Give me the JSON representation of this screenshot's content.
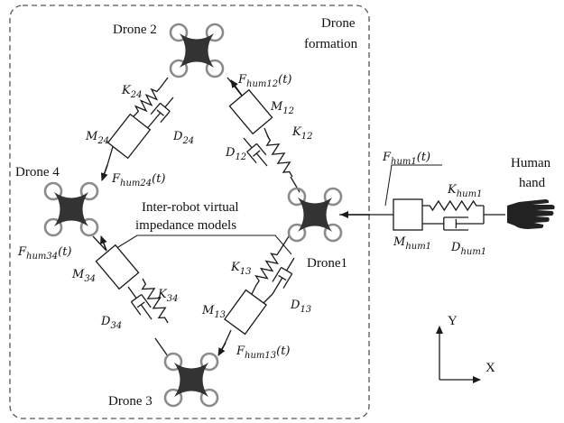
{
  "labels": {
    "drone_formation_1": "Drone",
    "drone_formation_2": "formation",
    "drone1": "Drone1",
    "drone2": "Drone 2",
    "drone3": "Drone 3",
    "drone4": "Drone 4",
    "human_1": "Human",
    "human_2": "hand",
    "inter_1": "Inter-robot  virtual",
    "inter_2": "impedance models",
    "axis_x": "X",
    "axis_y": "Y"
  },
  "symbols": {
    "F_hum12": {
      "base": "F",
      "sub": "hum12",
      "tail": "(t)"
    },
    "F_hum24": {
      "base": "F",
      "sub": "hum24",
      "tail": "(t)"
    },
    "F_hum34": {
      "base": "F",
      "sub": "hum34",
      "tail": "(t)"
    },
    "F_hum13": {
      "base": "F",
      "sub": "hum13",
      "tail": "(t)"
    },
    "F_hum1": {
      "base": "F",
      "sub": "hum1",
      "tail": "(t)"
    },
    "K_24": {
      "base": "K",
      "sub": "24",
      "tail": ""
    },
    "M_24": {
      "base": "M",
      "sub": "24",
      "tail": ""
    },
    "D_24": {
      "base": "D",
      "sub": "24",
      "tail": ""
    },
    "M_12": {
      "base": "M",
      "sub": "12",
      "tail": ""
    },
    "K_12": {
      "base": "K",
      "sub": "12",
      "tail": ""
    },
    "D_12": {
      "base": "D",
      "sub": "12",
      "tail": ""
    },
    "M_34": {
      "base": "M",
      "sub": "34",
      "tail": ""
    },
    "K_34": {
      "base": "K",
      "sub": "34",
      "tail": ""
    },
    "D_34": {
      "base": "D",
      "sub": "34",
      "tail": ""
    },
    "K_13": {
      "base": "K",
      "sub": "13",
      "tail": ""
    },
    "M_13": {
      "base": "M",
      "sub": "13",
      "tail": ""
    },
    "D_13": {
      "base": "D",
      "sub": "13",
      "tail": ""
    },
    "K_hum1": {
      "base": "K",
      "sub": "hum1",
      "tail": ""
    },
    "M_hum1": {
      "base": "M",
      "sub": "hum1",
      "tail": ""
    },
    "D_hum1": {
      "base": "D",
      "sub": "hum1",
      "tail": ""
    }
  },
  "colors": {
    "ink": "#1a1a1a",
    "drone_body": "#333333",
    "rotor": "#8a8a8a",
    "frame_dash": "#555555"
  }
}
